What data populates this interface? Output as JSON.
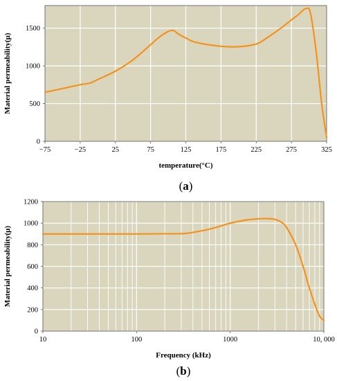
{
  "chart_data": [
    {
      "type": "line",
      "panel_label": "a",
      "xlabel": "temperature(°C)",
      "ylabel": "Material permeability(μ)",
      "xlim": [
        -75,
        325
      ],
      "ylim": [
        0,
        1800
      ],
      "x_ticks": [
        -75,
        -25,
        25,
        75,
        125,
        175,
        225,
        275,
        325
      ],
      "x_tick_labels": [
        "−75",
        "−25",
        "25",
        "75",
        "125",
        "175",
        "225",
        "275",
        "325"
      ],
      "y_ticks": [
        0,
        500,
        1000,
        1500
      ],
      "y_tick_labels": [
        "0",
        "500",
        "1000",
        "1500"
      ],
      "grid": true,
      "background": "#d9d6bd",
      "line_color": "#f5921e",
      "series": [
        {
          "x": [
            -75,
            -50,
            -25,
            -10,
            0,
            25,
            50,
            75,
            90,
            105,
            115,
            125,
            140,
            175,
            200,
            225,
            240,
            260,
            275,
            285,
            290,
            296,
            302,
            310,
            318,
            325
          ],
          "y": [
            650,
            700,
            750,
            775,
            820,
            930,
            1080,
            1280,
            1400,
            1470,
            1420,
            1370,
            1310,
            1260,
            1255,
            1290,
            1370,
            1500,
            1610,
            1680,
            1725,
            1760,
            1700,
            1200,
            500,
            50
          ]
        }
      ]
    },
    {
      "type": "line",
      "panel_label": "b",
      "xlabel": "Frequency (kHz)",
      "ylabel": "Material permeability(μ)",
      "xscale": "log",
      "xlim": [
        10,
        10000
      ],
      "ylim": [
        0,
        1200
      ],
      "x_ticks": [
        10,
        100,
        1000,
        10000
      ],
      "x_tick_labels": [
        "10",
        "100",
        "1000",
        "10, 000"
      ],
      "y_ticks": [
        0,
        200,
        400,
        600,
        800,
        1000,
        1200
      ],
      "y_tick_labels": [
        "0",
        "200",
        "400",
        "600",
        "800",
        "1000",
        "1200"
      ],
      "grid": true,
      "background": "#d9d6bd",
      "line_color": "#f5921e",
      "series": [
        {
          "x": [
            10,
            50,
            100,
            200,
            330,
            500,
            700,
            1000,
            1500,
            2000,
            2500,
            3000,
            3500,
            4000,
            5000,
            6000,
            7000,
            8000,
            9000,
            10000
          ],
          "y": [
            900,
            900,
            900,
            902,
            905,
            930,
            960,
            1000,
            1030,
            1040,
            1042,
            1035,
            1010,
            960,
            800,
            600,
            400,
            250,
            140,
            100
          ]
        }
      ]
    }
  ]
}
